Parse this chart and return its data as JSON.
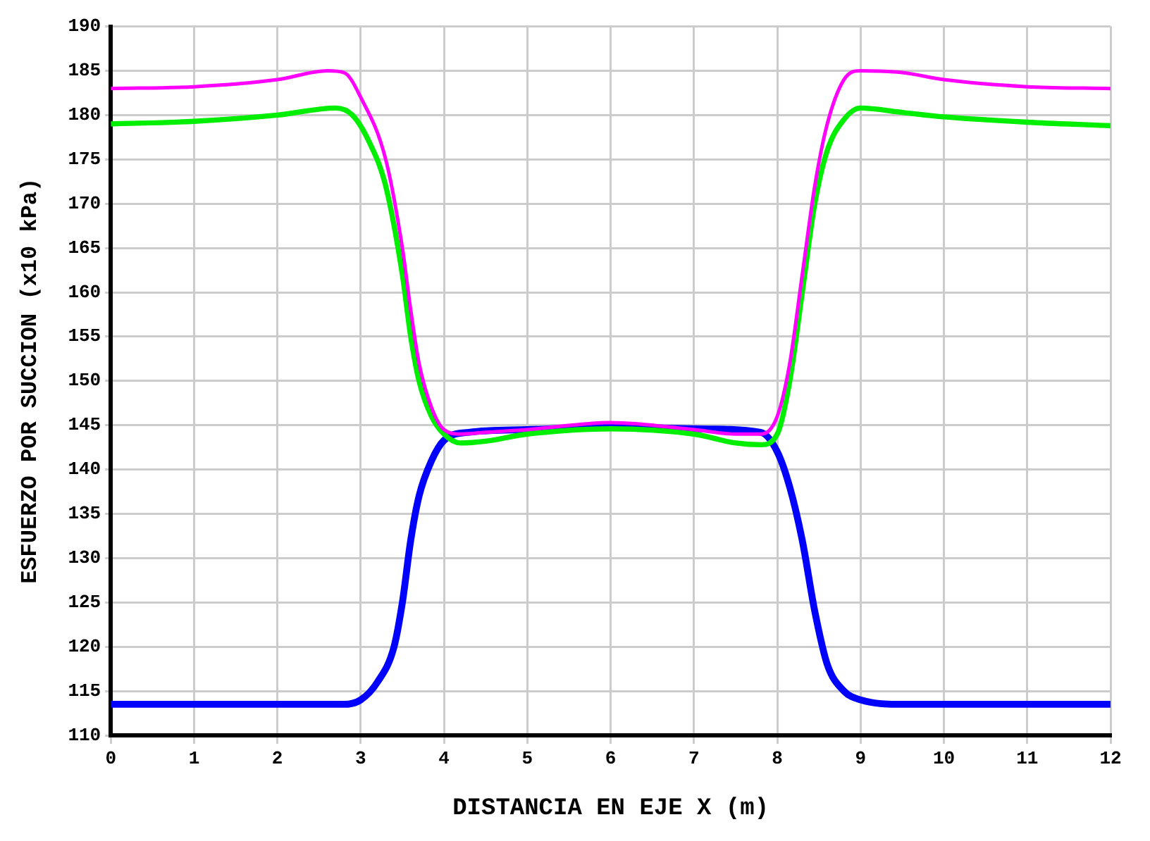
{
  "chart_data": {
    "type": "line",
    "xlabel": "DISTANCIA EN EJE X (m)",
    "ylabel": "ESFUERZO POR SUCCION (x10 kPa)",
    "xlim": [
      0,
      12
    ],
    "xticks": [
      0,
      1,
      2,
      3,
      4,
      5,
      6,
      7,
      8,
      9,
      10,
      11,
      12
    ],
    "ylim": [
      110,
      190
    ],
    "yticks": [
      110,
      115,
      120,
      125,
      130,
      135,
      140,
      145,
      150,
      155,
      160,
      165,
      170,
      175,
      180,
      185,
      190
    ],
    "grid": true,
    "marker": "none",
    "line_style": "solid",
    "legend": false,
    "series": [
      {
        "color": "#ff00ff",
        "x": [
          0,
          1,
          2,
          2.6,
          2.8,
          3.0,
          3.3,
          3.5,
          3.6,
          3.7,
          3.85,
          4.0,
          4.2,
          4.5,
          5,
          6,
          7,
          7.5,
          7.8,
          8.0,
          8.15,
          8.3,
          8.45,
          8.6,
          8.8,
          9.0,
          9.5,
          10,
          11,
          12
        ],
        "values": [
          183,
          183.2,
          184,
          185,
          184.8,
          182,
          175,
          165,
          158,
          152,
          147,
          144.5,
          144,
          144.2,
          144.5,
          145.3,
          144.5,
          144,
          144,
          146,
          152,
          162,
          172,
          179,
          184,
          185,
          184.8,
          184,
          183.2,
          183
        ]
      },
      {
        "color": "#00ee00",
        "x": [
          0,
          1,
          2,
          2.7,
          2.9,
          3.1,
          3.3,
          3.5,
          3.6,
          3.7,
          3.85,
          4.0,
          4.2,
          4.5,
          5,
          6,
          7,
          7.5,
          7.8,
          8.0,
          8.15,
          8.3,
          8.45,
          8.6,
          8.8,
          9.0,
          9.5,
          10,
          11,
          12
        ],
        "values": [
          179,
          179.3,
          180,
          180.8,
          180,
          177,
          172,
          162,
          155,
          150,
          146,
          144,
          143,
          143.2,
          144,
          144.6,
          144,
          143,
          142.8,
          144,
          150,
          160,
          170,
          176,
          179.5,
          180.8,
          180.3,
          179.8,
          179.2,
          178.8
        ]
      },
      {
        "color": "#0000ff",
        "x": [
          0,
          1,
          2,
          2.8,
          3.0,
          3.2,
          3.4,
          3.5,
          3.6,
          3.7,
          3.85,
          4.0,
          4.3,
          5,
          6,
          7,
          7.8,
          8.0,
          8.15,
          8.3,
          8.45,
          8.6,
          8.8,
          9.0,
          9.5,
          10,
          11,
          12
        ],
        "values": [
          113.5,
          113.5,
          113.5,
          113.5,
          114,
          116,
          120,
          125,
          132,
          137,
          141,
          143.3,
          144.2,
          144.5,
          144.8,
          144.6,
          144.2,
          142,
          138,
          132,
          124,
          118,
          115,
          114,
          113.5,
          113.5,
          113.5,
          113.5
        ]
      }
    ]
  }
}
